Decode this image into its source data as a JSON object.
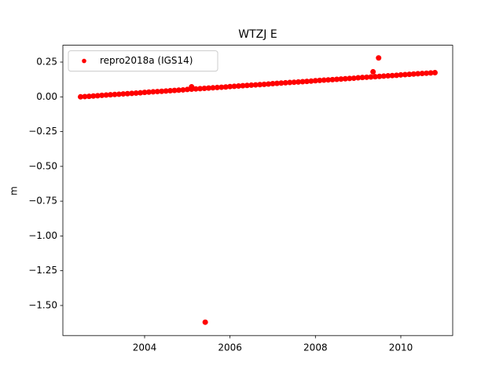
{
  "chart_data": {
    "type": "scatter",
    "title": "WTZJ E",
    "y_label": "m",
    "legend": "upper left",
    "grid": false,
    "xlim": [
      2002.086,
      2011.215
    ],
    "ylim": [
      -1.716,
      0.371
    ],
    "xticks": [
      2004,
      2006,
      2008,
      2010
    ],
    "yticks": [
      {
        "value": 0.25,
        "label": "0.25"
      },
      {
        "value": 0,
        "label": "0.00"
      },
      {
        "value": -0.25,
        "label": "−0.25"
      },
      {
        "value": -0.5,
        "label": "−0.50"
      },
      {
        "value": -0.75,
        "label": "−0.75"
      },
      {
        "value": -1,
        "label": "−1.00"
      },
      {
        "value": -1.25,
        "label": "−1.25"
      },
      {
        "value": -1.5,
        "label": "−1.50"
      }
    ],
    "series": [
      {
        "name": "repro2018a (IGS14)",
        "color": "#ff0000",
        "x": [
          2002.5,
          2002.6,
          2002.7,
          2002.8,
          2002.9,
          2003.0,
          2003.1,
          2003.2,
          2003.3,
          2003.4,
          2003.5,
          2003.6,
          2003.7,
          2003.8,
          2003.9,
          2004.0,
          2004.1,
          2004.2,
          2004.3,
          2004.4,
          2004.5,
          2004.6,
          2004.7,
          2004.8,
          2004.9,
          2005.0,
          2005.1,
          2005.2,
          2005.3,
          2005.4,
          2005.5,
          2005.6,
          2005.7,
          2005.8,
          2005.9,
          2006.0,
          2006.1,
          2006.2,
          2006.3,
          2006.4,
          2006.5,
          2006.6,
          2006.7,
          2006.8,
          2006.9,
          2007.0,
          2007.1,
          2007.2,
          2007.3,
          2007.4,
          2007.5,
          2007.6,
          2007.7,
          2007.8,
          2007.9,
          2008.0,
          2008.1,
          2008.2,
          2008.3,
          2008.4,
          2008.5,
          2008.6,
          2008.7,
          2008.8,
          2008.9,
          2009.0,
          2009.1,
          2009.2,
          2009.3,
          2009.4,
          2009.5,
          2009.6,
          2009.7,
          2009.8,
          2009.9,
          2010.0,
          2010.1,
          2010.2,
          2010.3,
          2010.4,
          2010.5,
          2010.6,
          2010.7,
          2010.8,
          2005.1,
          2005.42,
          2009.35,
          2009.48
        ],
        "values": [
          0.0,
          0.002,
          0.004,
          0.006,
          0.008,
          0.011,
          0.013,
          0.015,
          0.017,
          0.019,
          0.021,
          0.023,
          0.025,
          0.027,
          0.029,
          0.032,
          0.034,
          0.036,
          0.038,
          0.04,
          0.042,
          0.044,
          0.046,
          0.048,
          0.05,
          0.053,
          0.055,
          0.057,
          0.059,
          0.061,
          0.063,
          0.065,
          0.067,
          0.069,
          0.071,
          0.074,
          0.076,
          0.078,
          0.08,
          0.082,
          0.084,
          0.086,
          0.088,
          0.09,
          0.092,
          0.095,
          0.097,
          0.099,
          0.101,
          0.103,
          0.105,
          0.107,
          0.109,
          0.111,
          0.113,
          0.116,
          0.118,
          0.12,
          0.122,
          0.124,
          0.126,
          0.128,
          0.13,
          0.132,
          0.134,
          0.137,
          0.139,
          0.141,
          0.143,
          0.145,
          0.147,
          0.149,
          0.151,
          0.153,
          0.155,
          0.158,
          0.16,
          0.162,
          0.164,
          0.166,
          0.168,
          0.17,
          0.172,
          0.174,
          0.072,
          -1.62,
          0.18,
          0.28
        ]
      }
    ]
  }
}
